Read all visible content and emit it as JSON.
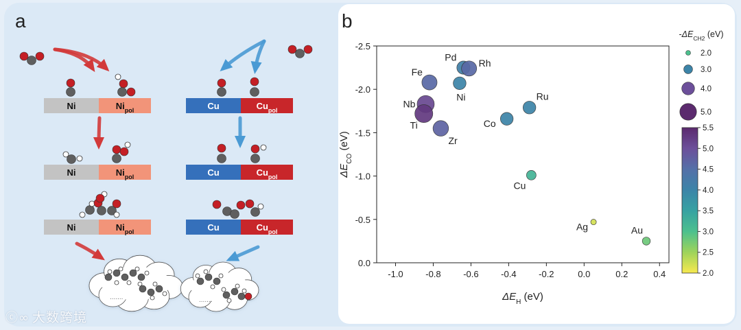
{
  "panel_a": {
    "label": "a",
    "ni": {
      "metal": "Ni",
      "pol": "Ni",
      "sub": "pol",
      "color_left": "#c3c3c3",
      "color_right": "#f29479"
    },
    "cu": {
      "metal": "Cu",
      "pol": "Cu",
      "sub": "pol",
      "color_left": "#3570bb",
      "color_right": "#c8262a"
    },
    "colors": {
      "carbon": "#5f5f5f",
      "oxygen": "#c41f25",
      "hydrogen": "#ffffff",
      "ni_arrow": "#d23a3a",
      "cu_arrow": "#4a9ad4",
      "cloud": "#ffffff",
      "bond_dots": "#777777"
    },
    "cloud_dots": "......."
  },
  "panel_b": {
    "label": "b",
    "watermark": "大数跨境"
  },
  "chart_data": {
    "type": "scatter",
    "xlabel": {
      "text": "ΔE",
      "sub": "H",
      "unit": " (eV)"
    },
    "ylabel": {
      "text": "ΔE",
      "sub": "CO",
      "unit": " (eV)"
    },
    "xlim": [
      -1.1,
      0.45
    ],
    "ylim": [
      0.0,
      -2.5
    ],
    "xticks": [
      -1.0,
      -0.8,
      -0.6,
      -0.4,
      -0.2,
      0.0,
      0.2,
      0.4
    ],
    "xtick_labels": [
      "-1.0",
      "-0.8",
      "-0.6",
      "-0.4",
      "-0.2",
      "0.0",
      "0.2",
      "0.4"
    ],
    "yticks": [
      -2.5,
      -2.0,
      -1.5,
      -1.0,
      -0.5,
      0.0
    ],
    "ytick_labels": [
      "-2.5",
      "-2.0",
      "-1.5",
      "-1.0",
      "-0.5",
      "0.0"
    ],
    "size_legend": {
      "title": {
        "text": "-ΔE",
        "sub": "CH2",
        "unit": " (eV)"
      },
      "entries": [
        {
          "value": 2.0,
          "label": "2.0"
        },
        {
          "value": 3.0,
          "label": "3.0"
        },
        {
          "value": 4.0,
          "label": "4.0"
        },
        {
          "value": 5.0,
          "label": "5.0"
        }
      ]
    },
    "colorbar": {
      "min": 2.0,
      "max": 5.5,
      "ticks": [
        2.0,
        2.5,
        3.0,
        3.5,
        4.0,
        4.5,
        5.0,
        5.5
      ],
      "tick_labels": [
        "2.0",
        "2.5",
        "3.0",
        "3.5",
        "4.0",
        "4.5",
        "5.0",
        "5.5"
      ],
      "stops": [
        "#f7e94f",
        "#9ed35a",
        "#4cc08e",
        "#37a2a2",
        "#3c84a8",
        "#5470a8",
        "#6c4f9a",
        "#5b2a6e"
      ]
    },
    "points": [
      {
        "name": "Fe",
        "x": -0.82,
        "y": -2.08,
        "c": 4.6
      },
      {
        "name": "Pd",
        "x": -0.64,
        "y": -2.25,
        "c": 4.1
      },
      {
        "name": "Rh",
        "x": -0.61,
        "y": -2.24,
        "c": 4.6
      },
      {
        "name": "Ni",
        "x": -0.66,
        "y": -2.07,
        "c": 4.0
      },
      {
        "name": "Nb",
        "x": -0.84,
        "y": -1.83,
        "c": 5.1
      },
      {
        "name": "Ti",
        "x": -0.85,
        "y": -1.72,
        "c": 5.3
      },
      {
        "name": "Zr",
        "x": -0.76,
        "y": -1.55,
        "c": 4.7
      },
      {
        "name": "Ru",
        "x": -0.29,
        "y": -1.79,
        "c": 4.0
      },
      {
        "name": "Co",
        "x": -0.41,
        "y": -1.66,
        "c": 4.0
      },
      {
        "name": "Cu",
        "x": -0.28,
        "y": -1.01,
        "c": 3.2
      },
      {
        "name": "Ag",
        "x": 0.05,
        "y": -0.47,
        "c": 2.2
      },
      {
        "name": "Au",
        "x": 0.33,
        "y": -0.25,
        "c": 2.8
      }
    ]
  }
}
